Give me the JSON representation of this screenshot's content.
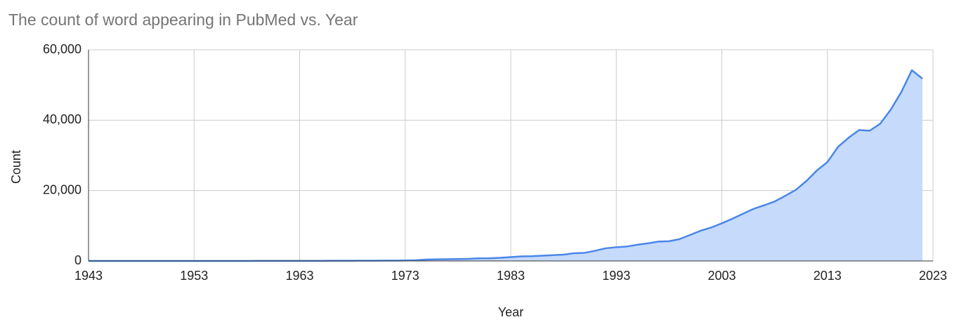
{
  "chart_data": {
    "type": "area",
    "title": "The count of word appearing in PubMed vs. Year",
    "x_label": "Year",
    "y_label": "Count",
    "x": [
      1943,
      1944,
      1945,
      1946,
      1947,
      1948,
      1949,
      1950,
      1951,
      1952,
      1953,
      1954,
      1955,
      1956,
      1957,
      1958,
      1959,
      1960,
      1961,
      1962,
      1963,
      1964,
      1965,
      1966,
      1967,
      1968,
      1969,
      1970,
      1971,
      1972,
      1973,
      1974,
      1975,
      1976,
      1977,
      1978,
      1979,
      1980,
      1981,
      1982,
      1983,
      1984,
      1985,
      1986,
      1987,
      1988,
      1989,
      1990,
      1991,
      1992,
      1993,
      1994,
      1995,
      1996,
      1997,
      1998,
      1999,
      2000,
      2001,
      2002,
      2003,
      2004,
      2005,
      2006,
      2007,
      2008,
      2009,
      2010,
      2011,
      2012,
      2013,
      2014,
      2015,
      2016,
      2017,
      2018,
      2019,
      2020,
      2021,
      2022
    ],
    "values": [
      0,
      0,
      0,
      0,
      0,
      0,
      0,
      0,
      0,
      0,
      5,
      5,
      5,
      10,
      10,
      10,
      15,
      15,
      20,
      20,
      25,
      30,
      30,
      40,
      50,
      60,
      70,
      80,
      100,
      110,
      130,
      200,
      400,
      450,
      500,
      550,
      600,
      750,
      780,
      900,
      1100,
      1300,
      1350,
      1500,
      1650,
      1800,
      2200,
      2300,
      2900,
      3600,
      3900,
      4100,
      4600,
      5000,
      5500,
      5600,
      6200,
      7400,
      8600,
      9500,
      10700,
      12000,
      13400,
      14800,
      15800,
      16900,
      18500,
      20200,
      22700,
      25700,
      28100,
      32400,
      35000,
      37200,
      37000,
      39000,
      43000,
      48000,
      54200,
      51800
    ],
    "color": "#4a86e8",
    "fill_color": "#c6dafc",
    "xlim": [
      1943,
      2023
    ],
    "xticks": [
      1943,
      1953,
      1963,
      1973,
      1983,
      1993,
      2003,
      2013,
      2023
    ],
    "ylim": [
      0,
      60000
    ],
    "yticks": [
      0,
      {
        "value": 20000,
        "label": "20,000"
      },
      {
        "value": 40000,
        "label": "40,000"
      },
      {
        "value": 60000,
        "label": "60,000"
      }
    ],
    "grid": true
  }
}
